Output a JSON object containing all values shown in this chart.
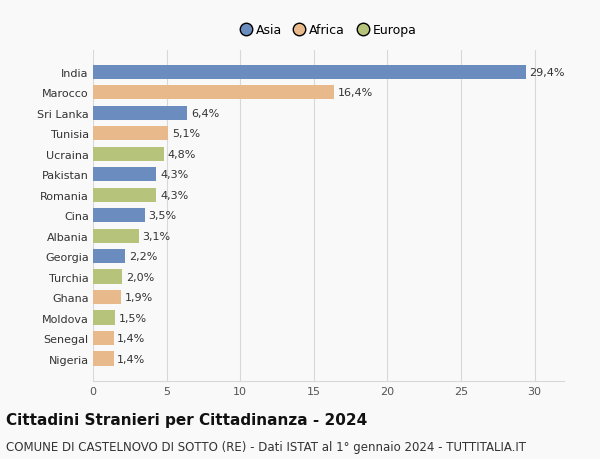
{
  "categories": [
    "Nigeria",
    "Senegal",
    "Moldova",
    "Ghana",
    "Turchia",
    "Georgia",
    "Albania",
    "Cina",
    "Romania",
    "Pakistan",
    "Ucraina",
    "Tunisia",
    "Sri Lanka",
    "Marocco",
    "India"
  ],
  "values": [
    1.4,
    1.4,
    1.5,
    1.9,
    2.0,
    2.2,
    3.1,
    3.5,
    4.3,
    4.3,
    4.8,
    5.1,
    6.4,
    16.4,
    29.4
  ],
  "labels": [
    "1,4%",
    "1,4%",
    "1,5%",
    "1,9%",
    "2,0%",
    "2,2%",
    "3,1%",
    "3,5%",
    "4,3%",
    "4,3%",
    "4,8%",
    "5,1%",
    "6,4%",
    "16,4%",
    "29,4%"
  ],
  "continent": [
    "Africa",
    "Africa",
    "Europa",
    "Africa",
    "Europa",
    "Asia",
    "Europa",
    "Asia",
    "Europa",
    "Asia",
    "Europa",
    "Africa",
    "Asia",
    "Africa",
    "Asia"
  ],
  "colors": {
    "Asia": "#6b8cbe",
    "Africa": "#e8b98a",
    "Europa": "#b5c47a"
  },
  "legend_labels": [
    "Asia",
    "Africa",
    "Europa"
  ],
  "legend_colors": [
    "#6b8cbe",
    "#e8b98a",
    "#b5c47a"
  ],
  "xlim": [
    0,
    32
  ],
  "xticks": [
    0,
    5,
    10,
    15,
    20,
    25,
    30
  ],
  "title": "Cittadini Stranieri per Cittadinanza - 2024",
  "subtitle": "COMUNE DI CASTELNOVO DI SOTTO (RE) - Dati ISTAT al 1° gennaio 2024 - TUTTITALIA.IT",
  "title_fontsize": 11,
  "subtitle_fontsize": 8.5,
  "bar_height": 0.7,
  "background_color": "#f9f9f9",
  "grid_color": "#d8d8d8",
  "label_fontsize": 8,
  "tick_fontsize": 8
}
